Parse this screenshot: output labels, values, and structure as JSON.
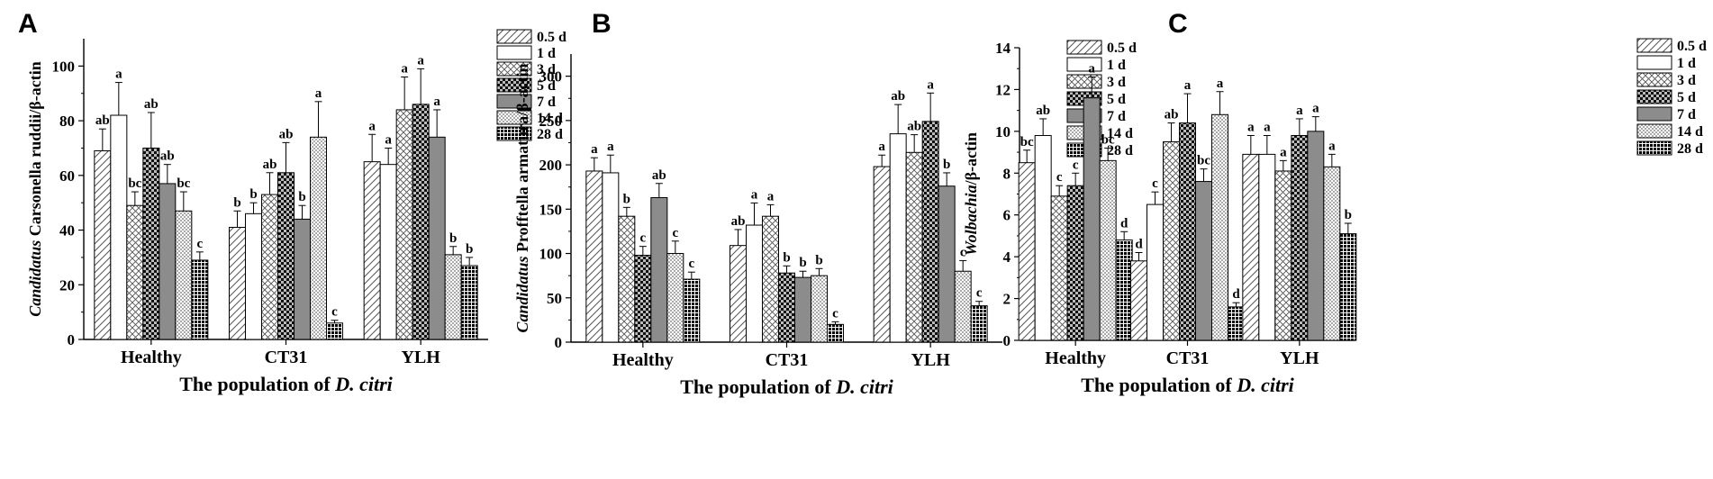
{
  "chart_data": [
    {
      "type": "bar",
      "panel": "A",
      "ylabel_italic": "Candidatus",
      "ylabel_rest": " Carsonella ruddii/β-actin",
      "xlabel_prefix": "The population of ",
      "xlabel_italic": "D. citri",
      "categories": [
        "Healthy",
        "CT31",
        "YLH"
      ],
      "ylim": [
        0,
        110
      ],
      "yticks": [
        0,
        20,
        40,
        60,
        80,
        100
      ],
      "series": [
        {
          "name": "0.5 d",
          "values": [
            69,
            41,
            65
          ],
          "errors": [
            8,
            6,
            10
          ],
          "labels": [
            "ab",
            "b",
            "a"
          ]
        },
        {
          "name": "1 d",
          "values": [
            82,
            46,
            64
          ],
          "errors": [
            12,
            4,
            6
          ],
          "labels": [
            "a",
            "b",
            "a"
          ]
        },
        {
          "name": "3 d",
          "values": [
            49,
            53,
            84
          ],
          "errors": [
            5,
            8,
            12
          ],
          "labels": [
            "bc",
            "ab",
            "a"
          ]
        },
        {
          "name": "5 d",
          "values": [
            70,
            61,
            86
          ],
          "errors": [
            13,
            11,
            13
          ],
          "labels": [
            "ab",
            "ab",
            "a"
          ]
        },
        {
          "name": "7 d",
          "values": [
            57,
            44,
            74
          ],
          "errors": [
            7,
            5,
            10
          ],
          "labels": [
            "ab",
            "b",
            "a"
          ]
        },
        {
          "name": "14 d",
          "values": [
            47,
            74,
            31
          ],
          "errors": [
            7,
            13,
            3
          ],
          "labels": [
            "bc",
            "a",
            "b"
          ]
        },
        {
          "name": "28 d",
          "values": [
            29,
            6,
            27
          ],
          "errors": [
            3,
            1,
            3
          ],
          "labels": [
            "c",
            "c",
            "b"
          ]
        }
      ]
    },
    {
      "type": "bar",
      "panel": "B",
      "ylabel_italic": "Candidatus",
      "ylabel_rest": " Profftella armatura/β-actin",
      "xlabel_prefix": "The population of ",
      "xlabel_italic": "D. citri",
      "categories": [
        "Healthy",
        "CT31",
        "YLH"
      ],
      "ylim": [
        0,
        325
      ],
      "yticks": [
        0,
        50,
        100,
        150,
        200,
        250,
        300
      ],
      "series": [
        {
          "name": "0.5 d",
          "values": [
            193,
            109,
            198
          ],
          "errors": [
            15,
            18,
            13
          ],
          "labels": [
            "a",
            "ab",
            "a"
          ]
        },
        {
          "name": "1 d",
          "values": [
            191,
            132,
            235
          ],
          "errors": [
            20,
            25,
            33
          ],
          "labels": [
            "a",
            "a",
            "ab"
          ]
        },
        {
          "name": "3 d",
          "values": [
            142,
            142,
            214
          ],
          "errors": [
            10,
            13,
            20
          ],
          "labels": [
            "b",
            "a",
            "ab"
          ]
        },
        {
          "name": "5 d",
          "values": [
            98,
            78,
            249
          ],
          "errors": [
            10,
            8,
            32
          ],
          "labels": [
            "c",
            "b",
            "a"
          ]
        },
        {
          "name": "7 d",
          "values": [
            163,
            73,
            176
          ],
          "errors": [
            16,
            7,
            15
          ],
          "labels": [
            "ab",
            "b",
            "b"
          ]
        },
        {
          "name": "14 d",
          "values": [
            100,
            75,
            80
          ],
          "errors": [
            14,
            8,
            12
          ],
          "labels": [
            "c",
            "b",
            "c"
          ]
        },
        {
          "name": "28 d",
          "values": [
            71,
            20,
            41
          ],
          "errors": [
            8,
            3,
            5
          ],
          "labels": [
            "c",
            "c",
            "c"
          ]
        }
      ]
    },
    {
      "type": "bar",
      "panel": "C",
      "ylabel_italic": "Wolbachia",
      "ylabel_rest": "/β-actin",
      "xlabel_prefix": "The population of ",
      "xlabel_italic": "D. citri",
      "categories": [
        "Healthy",
        "CT31",
        "YLH"
      ],
      "ylim": [
        0,
        14
      ],
      "yticks": [
        0,
        2,
        4,
        6,
        8,
        10,
        12,
        14
      ],
      "series": [
        {
          "name": "0.5 d",
          "values": [
            8.5,
            3.8,
            8.9
          ],
          "errors": [
            0.6,
            0.4,
            0.9
          ],
          "labels": [
            "bc",
            "d",
            "a"
          ]
        },
        {
          "name": "1 d",
          "values": [
            9.8,
            6.5,
            8.9
          ],
          "errors": [
            0.8,
            0.6,
            0.9
          ],
          "labels": [
            "ab",
            "c",
            "a"
          ]
        },
        {
          "name": "3 d",
          "values": [
            6.9,
            9.5,
            8.1
          ],
          "errors": [
            0.5,
            0.9,
            0.5
          ],
          "labels": [
            "c",
            "ab",
            "a"
          ]
        },
        {
          "name": "5 d",
          "values": [
            7.4,
            10.4,
            9.8
          ],
          "errors": [
            0.6,
            1.4,
            0.8
          ],
          "labels": [
            "c",
            "a",
            "a"
          ]
        },
        {
          "name": "7 d",
          "values": [
            11.6,
            7.6,
            10.0
          ],
          "errors": [
            1.0,
            0.6,
            0.7
          ],
          "labels": [
            "a",
            "bc",
            "a"
          ]
        },
        {
          "name": "14 d",
          "values": [
            8.6,
            10.8,
            8.3
          ],
          "errors": [
            0.6,
            1.1,
            0.6
          ],
          "labels": [
            "bc",
            "a",
            "a"
          ]
        },
        {
          "name": "28 d",
          "values": [
            4.8,
            1.6,
            5.1
          ],
          "errors": [
            0.4,
            0.2,
            0.5
          ],
          "labels": [
            "d",
            "d",
            "b"
          ]
        }
      ]
    }
  ]
}
